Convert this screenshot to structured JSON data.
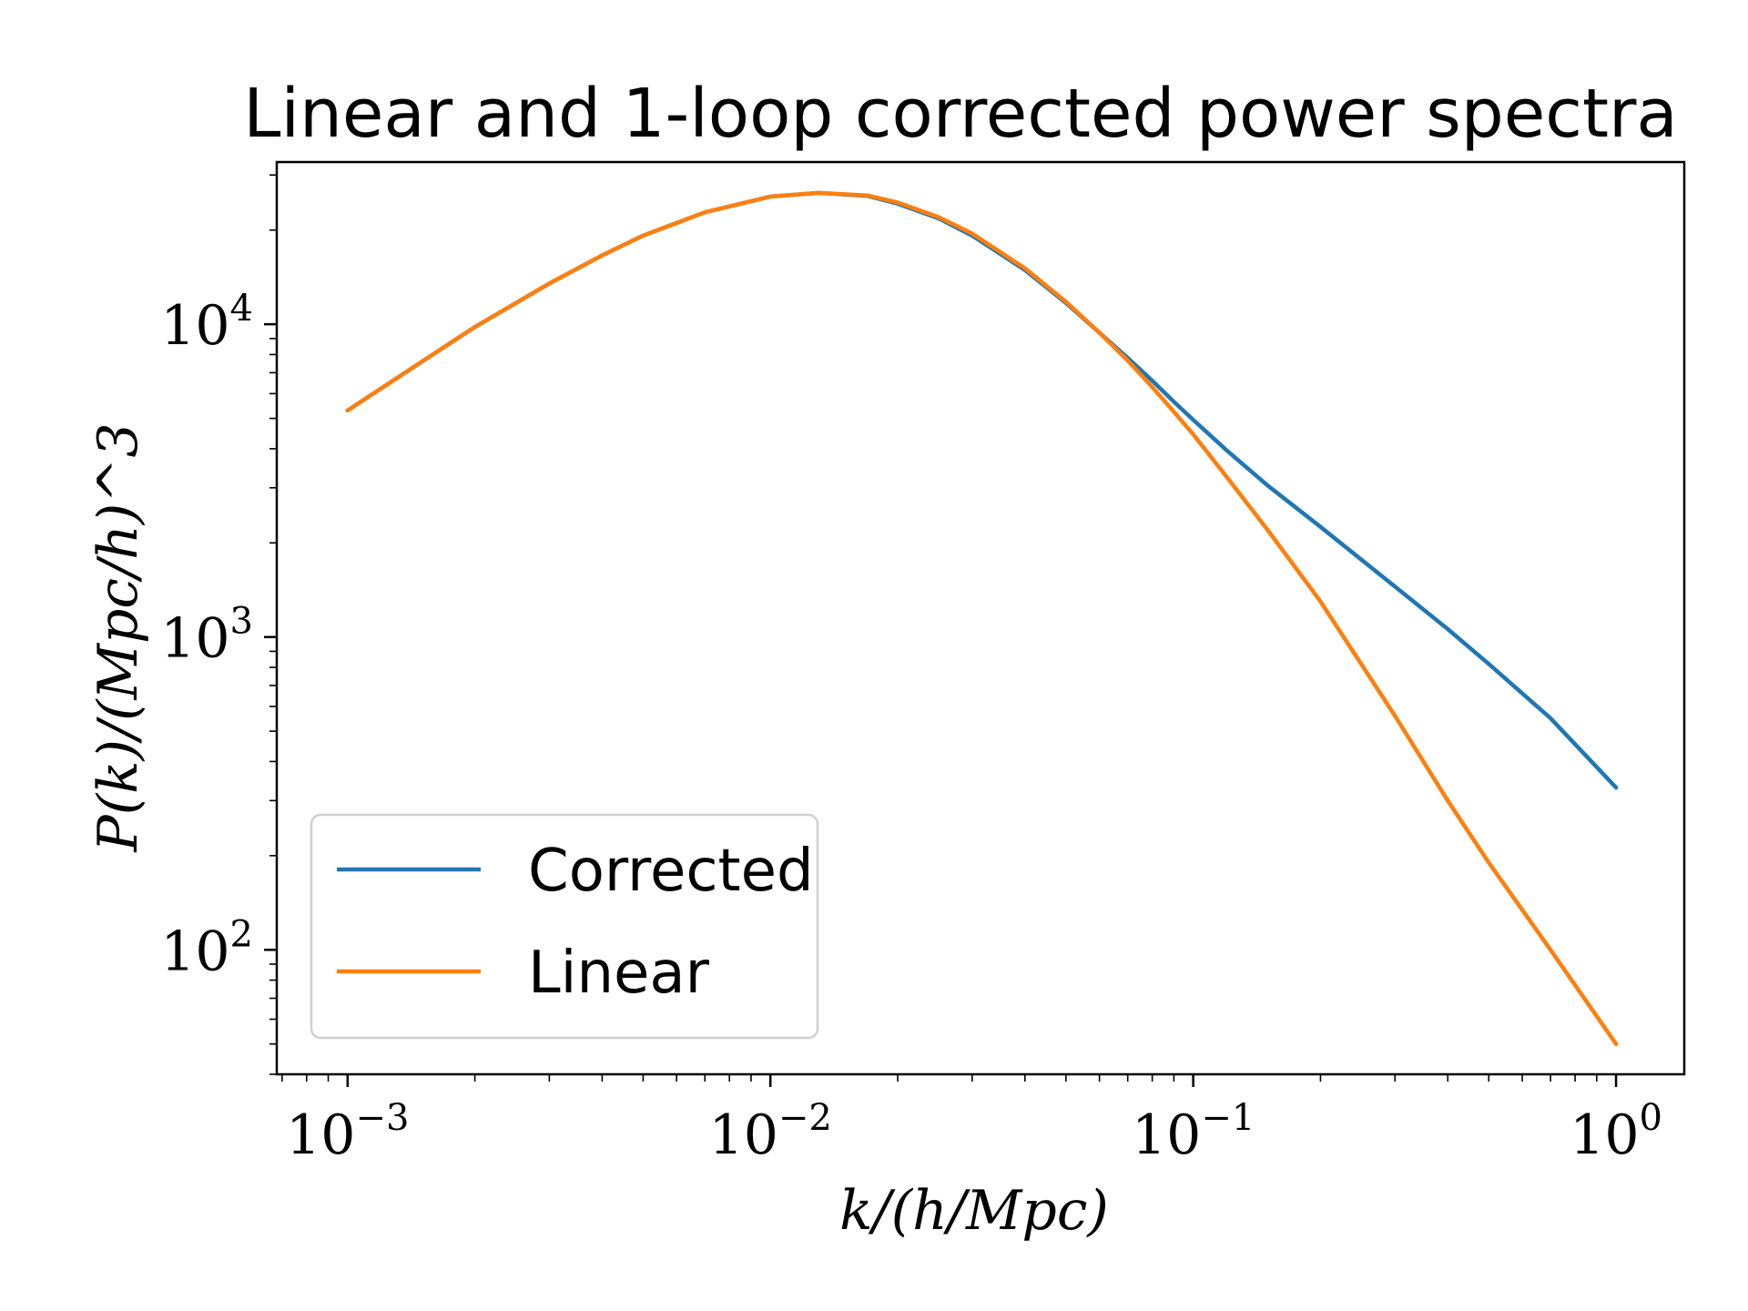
{
  "chart_data": {
    "type": "line",
    "title": "Linear and 1-loop corrected power spectra",
    "xlabel": "k/(h/Mpc)",
    "ylabel": "P(k)/(Mpc/h)^3",
    "xscale": "log",
    "yscale": "log",
    "xlim": [
      0.00068,
      1.45
    ],
    "ylim": [
      40,
      33000
    ],
    "x_ticks": [
      {
        "value": 0.001,
        "base": "10",
        "exp": "−3"
      },
      {
        "value": 0.01,
        "base": "10",
        "exp": "−2"
      },
      {
        "value": 0.1,
        "base": "10",
        "exp": "−1"
      },
      {
        "value": 1,
        "base": "10",
        "exp": "0"
      }
    ],
    "y_ticks": [
      {
        "value": 100,
        "base": "10",
        "exp": "2"
      },
      {
        "value": 1000,
        "base": "10",
        "exp": "3"
      },
      {
        "value": 10000,
        "base": "10",
        "exp": "4"
      }
    ],
    "legend_position": "lower-left",
    "grid": false,
    "series": [
      {
        "name": "Corrected",
        "color": "#1f77b4",
        "x": [
          0.001,
          0.0015,
          0.002,
          0.003,
          0.004,
          0.005,
          0.007,
          0.01,
          0.013,
          0.017,
          0.02,
          0.025,
          0.03,
          0.04,
          0.05,
          0.06,
          0.07,
          0.08,
          0.09,
          0.1,
          0.12,
          0.15,
          0.2,
          0.3,
          0.4,
          0.5,
          0.7,
          1.0
        ],
        "y": [
          5300,
          7600,
          9800,
          13500,
          16600,
          19200,
          22800,
          25600,
          26300,
          25700,
          24300,
          21800,
          19200,
          14900,
          11700,
          9400,
          7800,
          6600,
          5650,
          4950,
          3950,
          3050,
          2250,
          1450,
          1060,
          820,
          550,
          330
        ]
      },
      {
        "name": "Linear",
        "color": "#ff7f0e",
        "x": [
          0.001,
          0.0015,
          0.002,
          0.003,
          0.004,
          0.005,
          0.007,
          0.01,
          0.013,
          0.017,
          0.02,
          0.025,
          0.03,
          0.04,
          0.05,
          0.06,
          0.07,
          0.08,
          0.09,
          0.1,
          0.12,
          0.15,
          0.2,
          0.3,
          0.4,
          0.5,
          0.7,
          1.0
        ],
        "y": [
          5300,
          7600,
          9800,
          13500,
          16600,
          19200,
          22800,
          25600,
          26300,
          25800,
          24500,
          22000,
          19500,
          15100,
          11800,
          9400,
          7650,
          6300,
          5250,
          4450,
          3250,
          2200,
          1300,
          560,
          300,
          190,
          100,
          50
        ]
      }
    ]
  }
}
